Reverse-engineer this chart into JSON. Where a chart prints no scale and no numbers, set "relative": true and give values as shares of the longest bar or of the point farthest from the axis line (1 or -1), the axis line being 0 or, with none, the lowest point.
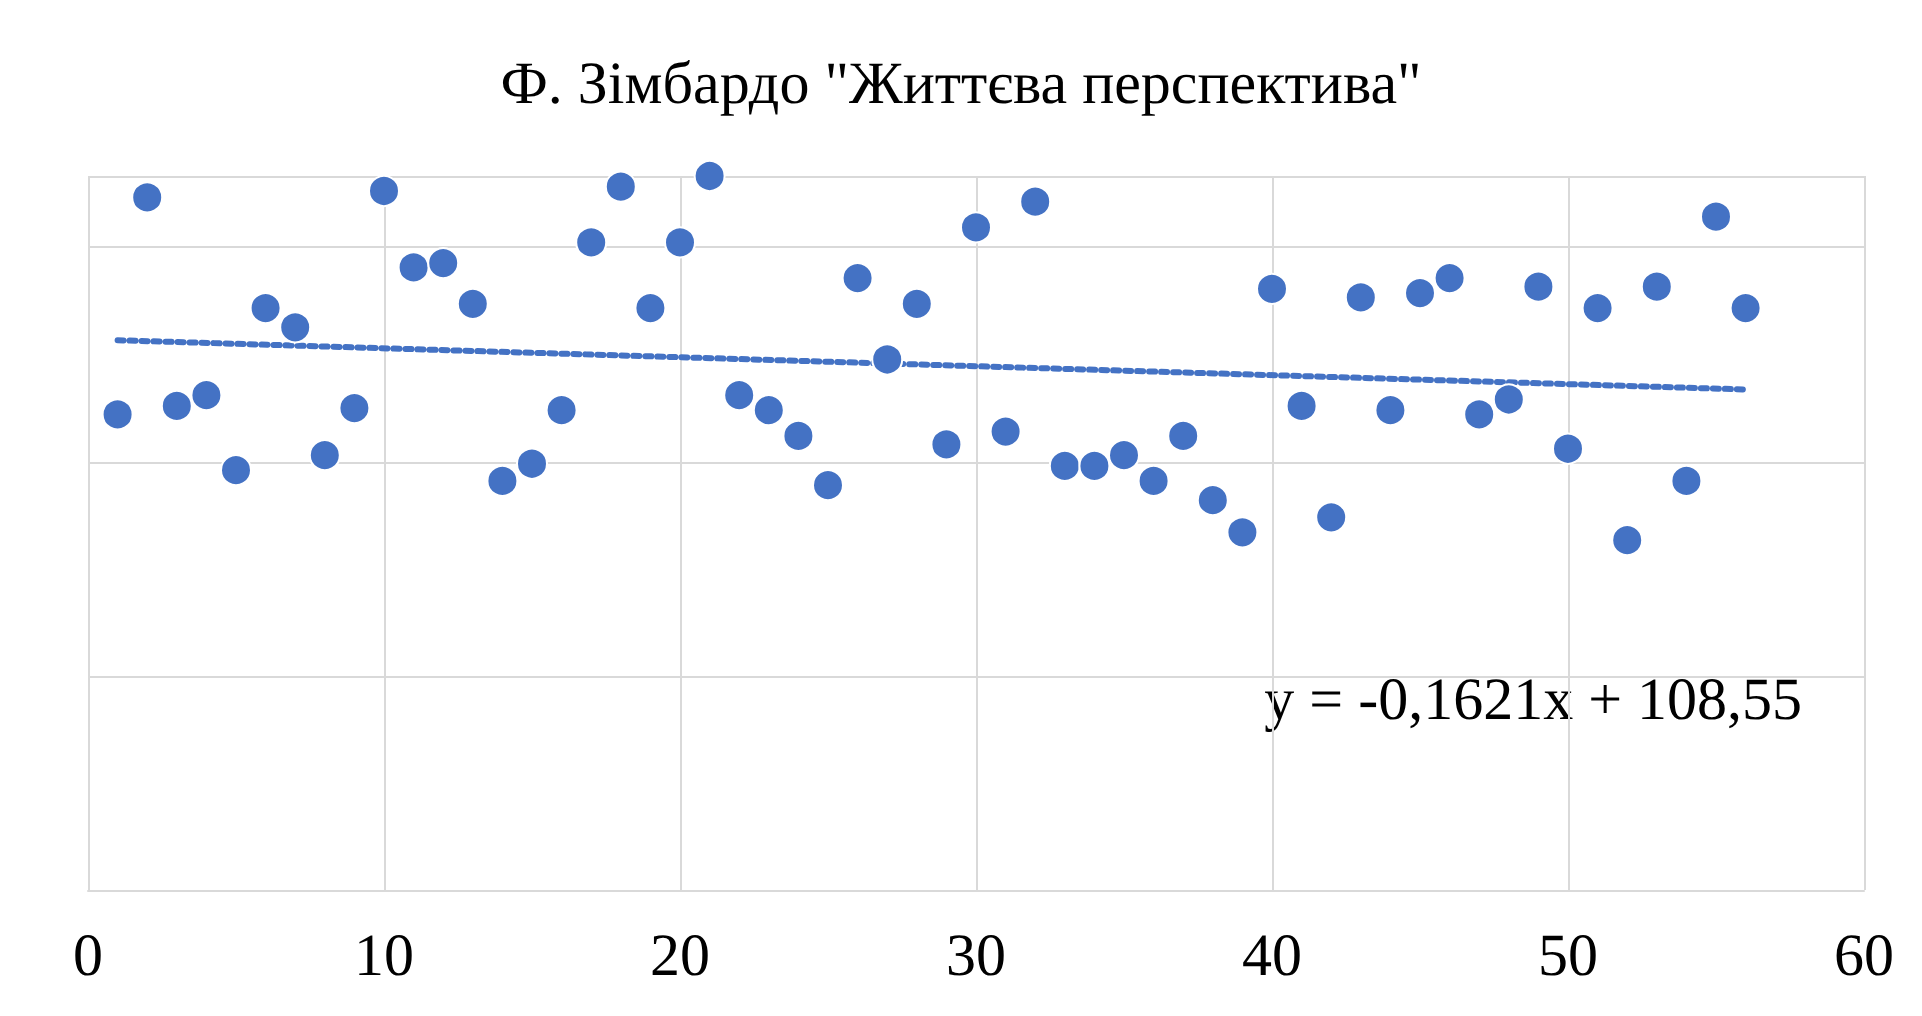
{
  "chart_data": {
    "type": "scatter",
    "title": "Ф. Зімбардо \"Життєва перспектива\"",
    "relative": true,
    "xlim": [
      0,
      60
    ],
    "xticks": [
      0,
      10,
      20,
      30,
      40,
      50,
      60
    ],
    "grid": true,
    "tick_labels": "x",
    "marker": "circle",
    "annotations": [
      "y = -0,1621x + 108,55"
    ],
    "x": [
      1,
      2,
      3,
      4,
      5,
      6,
      7,
      8,
      9,
      10,
      11,
      12,
      13,
      14,
      15,
      16,
      17,
      18,
      19,
      20,
      21,
      22,
      23,
      24,
      25,
      26,
      27,
      28,
      29,
      30,
      31,
      32,
      33,
      34,
      35,
      36,
      37,
      38,
      39,
      40,
      41,
      42,
      43,
      44,
      45,
      46,
      47,
      48,
      49,
      50,
      51,
      52,
      53,
      54,
      55,
      56
    ],
    "series": [
      {
        "color": "#4472c4",
        "values": [
          0.666,
          0.97,
          0.678,
          0.693,
          0.588,
          0.815,
          0.788,
          0.609,
          0.675,
          0.979,
          0.872,
          0.878,
          0.821,
          0.573,
          0.597,
          0.672,
          0.907,
          0.985,
          0.815,
          0.907,
          1,
          0.693,
          0.672,
          0.636,
          0.567,
          0.857,
          0.743,
          0.821,
          0.624,
          0.928,
          0.642,
          0.964,
          0.594,
          0.594,
          0.609,
          0.573,
          0.636,
          0.546,
          0.501,
          0.842,
          0.678,
          0.522,
          0.83,
          0.672,
          0.836,
          0.857,
          0.666,
          0.687,
          0.845,
          0.618,
          0.815,
          0.49,
          0.845,
          0.573,
          0.943,
          0.815
        ]
      },
      {
        "type": "line",
        "color": "#4472c4",
        "line_style": "dotted",
        "marker": "none",
        "x": [
          1,
          56
        ],
        "values": [
          0.77,
          0.701
        ]
      }
    ]
  }
}
